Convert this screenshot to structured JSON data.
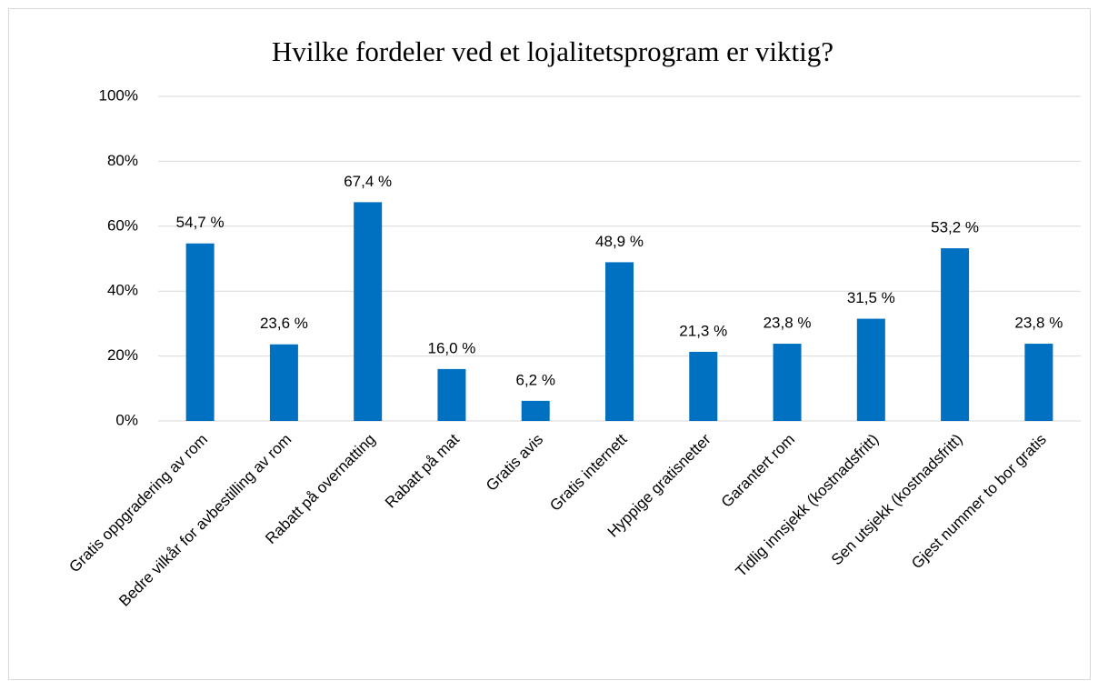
{
  "chart_data": {
    "type": "bar",
    "title": "Hvilke fordeler ved et lojalitetsprogram er viktig?",
    "categories": [
      "Gratis oppgradering av rom",
      "Bedre vilkår for avbestilling av rom",
      "Rabatt på overnatting",
      "Rabatt på mat",
      "Gratis avis",
      "Gratis internett",
      "Hyppige gratisnetter",
      "Garantert rom",
      "Tidlig innsjekk (kostnadsfritt)",
      "Sen utsjekk (kostnadsfritt)",
      "Gjest nummer to bor gratis"
    ],
    "values": [
      54.7,
      23.6,
      67.4,
      16.0,
      6.2,
      48.9,
      21.3,
      23.8,
      31.5,
      53.2,
      23.8
    ],
    "value_labels": [
      "54,7 %",
      "23,6 %",
      "67,4 %",
      "16,0 %",
      "6,2 %",
      "48,9 %",
      "21,3 %",
      "23,8 %",
      "31,5 %",
      "53,2 %",
      "23,8 %"
    ],
    "color": "#0070c0",
    "ylim": [
      0,
      100
    ],
    "yticks": [
      {
        "value": 0,
        "label": "0%"
      },
      {
        "value": 20,
        "label": "20%"
      },
      {
        "value": 40,
        "label": "40%"
      },
      {
        "value": 60,
        "label": "60%"
      },
      {
        "value": 80,
        "label": "80%"
      },
      {
        "value": 100,
        "label": "100%"
      }
    ],
    "grid": true
  }
}
